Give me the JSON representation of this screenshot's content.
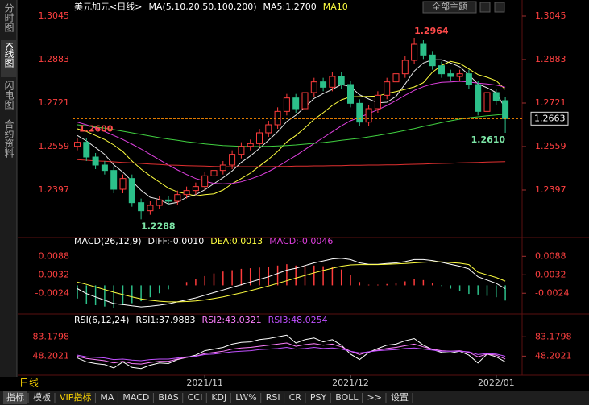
{
  "sidebar": [
    "分时图",
    "K线图",
    "闪电图",
    "合约资料"
  ],
  "theme": "全部主题",
  "period": "日线",
  "tabs": [
    "指标",
    "模板",
    "VIP指标",
    "MA",
    "MACD",
    "BIAS",
    "CCI",
    "KDJ",
    "LW%",
    "RSI",
    "CR",
    "PSY",
    "BOLL",
    ">>",
    "设置"
  ],
  "chart_data": [
    {
      "type": "candlestick",
      "title": "美元加元<日线>",
      "legend": [
        {
          "text": "MA(5,10,20,50,100,200)",
          "color": "#ffffff"
        },
        {
          "text": "MA5:1.2700",
          "color": "#ffffff"
        },
        {
          "text": "MA10",
          "color": "#ffff40"
        }
      ],
      "categories": [
        null,
        null,
        null,
        null,
        null,
        null,
        null,
        null,
        null,
        null,
        null,
        null,
        null,
        null,
        "2021/11",
        null,
        null,
        null,
        null,
        null,
        null,
        null,
        null,
        null,
        null,
        null,
        null,
        null,
        null,
        null,
        "2021/12",
        null,
        null,
        null,
        null,
        null,
        null,
        null,
        null,
        null,
        null,
        null,
        null,
        null,
        null,
        null,
        "2022/01",
        null
      ],
      "open": [
        1.256,
        1.2575,
        1.252,
        1.249,
        1.247,
        1.24,
        1.244,
        1.235,
        1.232,
        1.234,
        1.236,
        1.2355,
        1.238,
        1.2395,
        1.241,
        1.245,
        1.247,
        1.249,
        1.253,
        1.256,
        1.257,
        1.261,
        1.264,
        1.269,
        1.274,
        1.27,
        1.276,
        1.28,
        1.278,
        1.282,
        1.279,
        1.272,
        1.265,
        1.27,
        1.275,
        1.28,
        1.283,
        1.288,
        1.294,
        1.29,
        1.286,
        1.283,
        1.282,
        1.283,
        1.279,
        1.269,
        1.276,
        1.273
      ],
      "high": [
        1.259,
        1.259,
        1.2535,
        1.2505,
        1.2485,
        1.2455,
        1.2455,
        1.2365,
        1.2355,
        1.2375,
        1.2375,
        1.2395,
        1.241,
        1.2425,
        1.2465,
        1.2485,
        1.2505,
        1.2545,
        1.2575,
        1.2585,
        1.2625,
        1.2655,
        1.2705,
        1.2755,
        1.2755,
        1.2775,
        1.2815,
        1.2815,
        1.2835,
        1.2835,
        1.2805,
        1.2735,
        1.2715,
        1.2765,
        1.2815,
        1.2845,
        1.2895,
        1.2964,
        1.2955,
        1.2915,
        1.2875,
        1.2845,
        1.2845,
        1.2845,
        1.2805,
        1.2775,
        1.2775,
        1.2745
      ],
      "low": [
        1.2545,
        1.2505,
        1.2475,
        1.2455,
        1.2385,
        1.2385,
        1.2335,
        1.2288,
        1.2305,
        1.2325,
        1.234,
        1.234,
        1.2365,
        1.238,
        1.2395,
        1.2435,
        1.2455,
        1.2475,
        1.2515,
        1.2545,
        1.2555,
        1.2595,
        1.2625,
        1.2675,
        1.2685,
        1.2685,
        1.2745,
        1.2765,
        1.2765,
        1.2775,
        1.2705,
        1.2635,
        1.2635,
        1.2685,
        1.2735,
        1.2785,
        1.2815,
        1.2865,
        1.2885,
        1.2845,
        1.2815,
        1.2805,
        1.2805,
        1.2775,
        1.2675,
        1.2675,
        1.2715,
        1.261
      ],
      "close": [
        1.2575,
        1.252,
        1.249,
        1.247,
        1.24,
        1.244,
        1.235,
        1.232,
        1.234,
        1.236,
        1.2355,
        1.238,
        1.2395,
        1.241,
        1.245,
        1.247,
        1.249,
        1.253,
        1.256,
        1.257,
        1.261,
        1.264,
        1.269,
        1.274,
        1.27,
        1.276,
        1.28,
        1.278,
        1.282,
        1.279,
        1.272,
        1.265,
        1.27,
        1.275,
        1.28,
        1.283,
        1.288,
        1.294,
        1.29,
        1.286,
        1.283,
        1.282,
        1.283,
        1.279,
        1.269,
        1.276,
        1.273,
        1.2663
      ],
      "up_color": "#ff3c3c",
      "down_color": "#2cc08a",
      "series": [
        {
          "color": "#e8e8e8",
          "values": [
            1.26,
            1.258,
            1.2555,
            1.253,
            1.2491,
            1.2464,
            1.243,
            1.2396,
            1.237,
            1.2362,
            1.2345,
            1.2351,
            1.237,
            1.238,
            1.2398,
            1.2421,
            1.2443,
            1.2468,
            1.25,
            1.2524,
            1.2552,
            1.2582,
            1.2614,
            1.2652,
            1.2676,
            1.2706,
            1.2738,
            1.2756,
            1.2772,
            1.279,
            1.2782,
            1.2752,
            1.2736,
            1.2722,
            1.2724,
            1.2746,
            1.2792,
            1.284,
            1.287,
            1.2882,
            1.2882,
            1.287,
            1.2856,
            1.2826,
            1.2792,
            1.2778,
            1.276,
            1.27
          ]
        },
        {
          "color": "#ffff40",
          "values": [
            1.2625,
            1.2615,
            1.26,
            1.2585,
            1.2565,
            1.254,
            1.2505,
            1.2475,
            1.245,
            1.2427,
            1.2404,
            1.239,
            1.2383,
            1.2375,
            1.238,
            1.2383,
            1.2397,
            1.2421,
            1.244,
            1.246,
            1.2486,
            1.2512,
            1.2541,
            1.2576,
            1.26,
            1.2629,
            1.266,
            1.2685,
            1.2712,
            1.2733,
            1.2744,
            1.2745,
            1.2746,
            1.2747,
            1.2757,
            1.2764,
            1.2772,
            1.2781,
            1.2797,
            1.2836,
            1.2861,
            1.2876,
            1.2869,
            1.2848,
            1.2827,
            1.2817,
            1.2804,
            1.2772
          ]
        },
        {
          "color": "#e040e0",
          "values": [
            1.265,
            1.264,
            1.2628,
            1.2615,
            1.26,
            1.2585,
            1.2568,
            1.255,
            1.253,
            1.251,
            1.249,
            1.2472,
            1.2455,
            1.244,
            1.243,
            1.2422,
            1.242,
            1.2422,
            1.2428,
            1.2438,
            1.245,
            1.2466,
            1.2484,
            1.2505,
            1.2525,
            1.2548,
            1.257,
            1.2592,
            1.2614,
            1.2636,
            1.2655,
            1.2668,
            1.2682,
            1.2696,
            1.2712,
            1.273,
            1.275,
            1.2768,
            1.2782,
            1.2792,
            1.2798,
            1.28,
            1.2802,
            1.28,
            1.2795,
            1.2792,
            1.2788,
            1.278
          ]
        },
        {
          "color": "#40d040",
          "values": [
            1.264,
            1.2636,
            1.2632,
            1.2627,
            1.2622,
            1.2616,
            1.261,
            1.2604,
            1.2598,
            1.2592,
            1.2587,
            1.2582,
            1.2577,
            1.2573,
            1.2569,
            1.2566,
            1.2563,
            1.2561,
            1.256,
            1.2559,
            1.2559,
            1.256,
            1.2561,
            1.2563,
            1.2565,
            1.2568,
            1.2571,
            1.2574,
            1.2578,
            1.2582,
            1.2586,
            1.259,
            1.2595,
            1.26,
            1.2606,
            1.2612,
            1.2619,
            1.2626,
            1.2634,
            1.2641,
            1.2648,
            1.2655,
            1.2661,
            1.2666,
            1.267,
            1.2674,
            1.2677,
            1.268
          ]
        },
        {
          "color": "#e03030",
          "values": [
            1.251,
            1.2508,
            1.2506,
            1.2504,
            1.2502,
            1.25,
            1.2498,
            1.2496,
            1.2494,
            1.2492,
            1.249,
            1.2489,
            1.2488,
            1.2487,
            1.2486,
            1.2485,
            1.2484,
            1.2484,
            1.2484,
            1.2484,
            1.2484,
            1.2484,
            1.2485,
            1.2485,
            1.2486,
            1.2486,
            1.2487,
            1.2487,
            1.2488,
            1.2488,
            1.2489,
            1.2489,
            1.249,
            1.249,
            1.2491,
            1.2491,
            1.2492,
            1.2493,
            1.2494,
            1.2495,
            1.2496,
            1.2497,
            1.2498,
            1.2499,
            1.25,
            1.2501,
            1.2502,
            1.2503
          ]
        }
      ],
      "annotations": [
        {
          "candle": 37,
          "value": 1.2964,
          "color": "#ff4a4a"
        },
        {
          "candle": 7,
          "value": 1.2288,
          "color": "#7ee8a8"
        },
        {
          "candle": 47,
          "value": {
            "value": 1.261,
            "label": "1.2610"
          },
          "color": "#7ee8a8"
        },
        {
          "candle": 0,
          "value": {
            "value": 1.26,
            "label": "1.2600"
          },
          "color": "#ff4a4a"
        }
      ],
      "last_price": 1.2663,
      "last_price_color": "#ff8c00",
      "ylim": [
        1.2235,
        1.306
      ],
      "yticks": [
        1.3045,
        1.2883,
        1.2721,
        1.2559,
        1.2397
      ],
      "tick_color": "#ff4040"
    },
    {
      "type": "macd",
      "legend": [
        {
          "text": "MACD(26,12,9)",
          "color": "#ffffff"
        },
        {
          "text": "DIFF:-0.0010",
          "color": "#ffffff"
        },
        {
          "text": "DEA:0.0013",
          "color": "#ffff40"
        },
        {
          "text": "MACD:-0.0046",
          "color": "#e040e0"
        }
      ],
      "values": [
        -0.004,
        -0.0056,
        -0.006,
        -0.0064,
        -0.0068,
        -0.006,
        -0.0054,
        -0.0048,
        -0.0036,
        -0.0024,
        -0.0012,
        0,
        0.001,
        0.0018,
        0.0028,
        0.0036,
        0.0042,
        0.0046,
        0.005,
        0.0052,
        0.0054,
        0.0056,
        0.006,
        0.0064,
        0.006,
        0.006,
        0.006,
        0.0058,
        0.0056,
        0.0048,
        0.0032,
        0.001,
        0.0002,
        0.0002,
        0.0004,
        0.0006,
        0.0012,
        0.002,
        0.0016,
        0.0008,
        -0.0002,
        -0.001,
        -0.0018,
        -0.0026,
        -0.0028,
        -0.0032,
        -0.0036,
        -0.0046
      ],
      "up_color": "#ff3c3c",
      "down_color": "#2cc08a",
      "series": [
        {
          "color": "#ffffff",
          "values": [
            -0.001,
            -0.0025,
            -0.0035,
            -0.0045,
            -0.0055,
            -0.0058,
            -0.0062,
            -0.0065,
            -0.0063,
            -0.006,
            -0.0056,
            -0.005,
            -0.0044,
            -0.0038,
            -0.003,
            -0.0022,
            -0.0014,
            -0.0006,
            0.0002,
            0.001,
            0.0018,
            0.0026,
            0.0036,
            0.0046,
            0.0052,
            0.006,
            0.0068,
            0.0074,
            0.008,
            0.0082,
            0.0078,
            0.0068,
            0.0064,
            0.0064,
            0.0066,
            0.0068,
            0.0072,
            0.0078,
            0.0078,
            0.0075,
            0.007,
            0.0064,
            0.0058,
            0.005,
            0.0026,
            0.0016,
            0.0006,
            -0.001
          ]
        },
        {
          "color": "#ffff40",
          "values": [
            0.001,
            0.0003,
            -0.0005,
            -0.0013,
            -0.0021,
            -0.0028,
            -0.0035,
            -0.0041,
            -0.0045,
            -0.0048,
            -0.005,
            -0.005,
            -0.0049,
            -0.0047,
            -0.0044,
            -0.004,
            -0.0035,
            -0.0029,
            -0.0023,
            -0.0016,
            -0.0009,
            -0.0002,
            0.0006,
            0.0014,
            0.0022,
            0.003,
            0.0038,
            0.0045,
            0.0052,
            0.0058,
            0.0062,
            0.0063,
            0.0063,
            0.0063,
            0.0064,
            0.0065,
            0.0066,
            0.0068,
            0.007,
            0.0071,
            0.0071,
            0.0069,
            0.0067,
            0.0063,
            0.004,
            0.0032,
            0.0024,
            0.0013
          ]
        }
      ],
      "ylim": [
        -0.0077,
        0.0118
      ],
      "yticks": [
        0.0088,
        0.0032,
        -0.0024
      ],
      "tick_color": "#ff4040"
    },
    {
      "type": "line",
      "legend": [
        {
          "text": "RSI(6,12,24)",
          "color": "#ffffff"
        },
        {
          "text": "RSI1:37.9883",
          "color": "#ffffff"
        },
        {
          "text": "RSI2:43.0321",
          "color": "#ff80ff"
        },
        {
          "text": "RSI3:48.0254",
          "color": "#c050ff"
        }
      ],
      "series": [
        {
          "color": "#ffffff",
          "values": [
            45,
            38,
            35,
            33,
            27,
            38,
            28,
            26,
            32,
            36,
            35,
            42,
            46,
            50,
            58,
            61,
            64,
            70,
            73,
            74,
            78,
            80,
            83,
            86,
            72,
            78,
            81,
            74,
            78,
            68,
            52,
            42,
            55,
            62,
            68,
            70,
            76,
            80,
            68,
            60,
            55,
            54,
            57,
            50,
            36,
            52,
            47,
            37.9883
          ]
        },
        {
          "color": "#ff80ff",
          "values": [
            48,
            44,
            42,
            40,
            36,
            39,
            35,
            34,
            37,
            39,
            39,
            43,
            46,
            48,
            53,
            55,
            57,
            61,
            63,
            64,
            66,
            68,
            70,
            72,
            66,
            69,
            71,
            68,
            70,
            65,
            57,
            51,
            56,
            59,
            62,
            64,
            67,
            70,
            65,
            61,
            58,
            57,
            58,
            55,
            47,
            52,
            50,
            43.0321
          ]
        },
        {
          "color": "#c050ff",
          "values": [
            50,
            47,
            46,
            45,
            42,
            43,
            41,
            40,
            42,
            43,
            43,
            45,
            47,
            48,
            51,
            52,
            54,
            56,
            57,
            58,
            60,
            61,
            62,
            64,
            61,
            62,
            64,
            62,
            63,
            61,
            57,
            54,
            56,
            58,
            59,
            60,
            62,
            63,
            61,
            59,
            57,
            57,
            57,
            56,
            51,
            53,
            52,
            48.0254
          ]
        }
      ],
      "ylim": [
        19.7,
        103.9
      ],
      "yticks": [
        83.1798,
        48.2021
      ],
      "tick_color": "#ff4040"
    }
  ]
}
